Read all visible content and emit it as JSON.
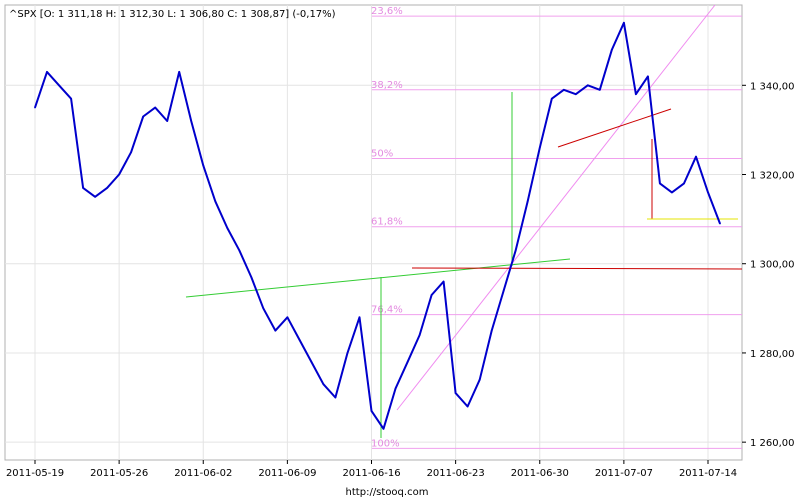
{
  "header": {
    "quote": "^SPX [O: 1 311,18  H: 1 312,30  L: 1 306,80  C: 1 308,87] (-0,17%)"
  },
  "footer": {
    "source": "http://stooq.com"
  },
  "chart_data": {
    "type": "line",
    "ticker": "^SPX",
    "ylim": [
      1256,
      1358
    ],
    "y_ticks": [
      {
        "value": 1260,
        "label": "1 260,00"
      },
      {
        "value": 1280,
        "label": "1 280,00"
      },
      {
        "value": 1300,
        "label": "1 300,00"
      },
      {
        "value": 1320,
        "label": "1 320,00"
      },
      {
        "value": 1340,
        "label": "1 340,00"
      }
    ],
    "x_ticks": [
      "2011-05-19",
      "2011-05-26",
      "2011-06-02",
      "2011-06-09",
      "2011-06-16",
      "2011-06-23",
      "2011-06-30",
      "2011-07-07",
      "2011-07-14"
    ],
    "fibonacci_levels": [
      {
        "label": "23,6%",
        "value": 1355.5
      },
      {
        "label": "38,2%",
        "value": 1339.0
      },
      {
        "label": "50%",
        "value": 1323.6
      },
      {
        "label": "61,8%",
        "value": 1308.3
      },
      {
        "label": "76,4%",
        "value": 1288.6
      },
      {
        "label": "100%",
        "value": 1258.6
      }
    ],
    "series": [
      {
        "values": [
          [
            "2011-05-19",
            1335
          ],
          [
            "2011-05-20",
            1343
          ],
          [
            "2011-05-21",
            1340
          ],
          [
            "2011-05-22",
            1337
          ],
          [
            "2011-05-23",
            1317
          ],
          [
            "2011-05-24",
            1315
          ],
          [
            "2011-05-25",
            1317
          ],
          [
            "2011-05-26",
            1320
          ],
          [
            "2011-05-27",
            1325
          ],
          [
            "2011-05-28",
            1333
          ],
          [
            "2011-05-29",
            1335
          ],
          [
            "2011-05-30",
            1332
          ],
          [
            "2011-05-31",
            1343
          ],
          [
            "2011-06-01",
            1332
          ],
          [
            "2011-06-02",
            1322
          ],
          [
            "2011-06-03",
            1314
          ],
          [
            "2011-06-04",
            1308
          ],
          [
            "2011-06-05",
            1303
          ],
          [
            "2011-06-06",
            1297
          ],
          [
            "2011-06-07",
            1290
          ],
          [
            "2011-06-08",
            1285
          ],
          [
            "2011-06-09",
            1288
          ],
          [
            "2011-06-10",
            1283
          ],
          [
            "2011-06-11",
            1278
          ],
          [
            "2011-06-12",
            1273
          ],
          [
            "2011-06-13",
            1270
          ],
          [
            "2011-06-14",
            1280
          ],
          [
            "2011-06-15",
            1288
          ],
          [
            "2011-06-16",
            1267
          ],
          [
            "2011-06-17",
            1263
          ],
          [
            "2011-06-18",
            1272
          ],
          [
            "2011-06-19",
            1278
          ],
          [
            "2011-06-20",
            1284
          ],
          [
            "2011-06-21",
            1293
          ],
          [
            "2011-06-22",
            1296
          ],
          [
            "2011-06-23",
            1271
          ],
          [
            "2011-06-24",
            1268
          ],
          [
            "2011-06-25",
            1274
          ],
          [
            "2011-06-26",
            1285
          ],
          [
            "2011-06-27",
            1294
          ],
          [
            "2011-06-28",
            1303
          ],
          [
            "2011-06-29",
            1314
          ],
          [
            "2011-06-30",
            1326
          ],
          [
            "2011-07-01",
            1337
          ],
          [
            "2011-07-02",
            1339
          ],
          [
            "2011-07-03",
            1338
          ],
          [
            "2011-07-04",
            1340
          ],
          [
            "2011-07-05",
            1339
          ],
          [
            "2011-07-06",
            1348
          ],
          [
            "2011-07-07",
            1354
          ],
          [
            "2011-07-08",
            1338
          ],
          [
            "2011-07-09",
            1342
          ],
          [
            "2011-07-10",
            1318
          ],
          [
            "2011-07-11",
            1316
          ],
          [
            "2011-07-12",
            1318
          ],
          [
            "2011-07-13",
            1324
          ],
          [
            "2011-07-14",
            1316
          ],
          [
            "2011-07-15",
            1309
          ]
        ]
      }
    ]
  }
}
